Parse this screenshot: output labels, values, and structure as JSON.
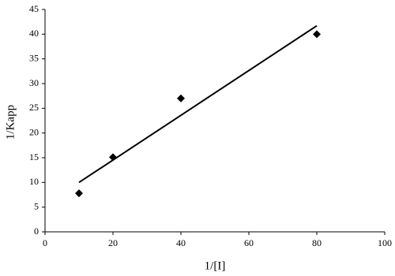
{
  "chart_data": {
    "type": "scatter",
    "x_label": "1/[I]",
    "y_label": "1/Kapp",
    "x": [
      10,
      20,
      40,
      80
    ],
    "values": [
      7.8,
      15.1,
      27,
      40
    ],
    "color": "#000000",
    "trendline": {
      "x": [
        10,
        80
      ],
      "values": [
        10,
        41.7
      ]
    },
    "xlim": [
      0,
      100
    ],
    "xticks": [
      0,
      20,
      40,
      60,
      80,
      100
    ],
    "ylim": [
      0,
      45
    ],
    "yticks": [
      0,
      5,
      10,
      15,
      20,
      25,
      30,
      35,
      40,
      45
    ],
    "grid": false
  }
}
